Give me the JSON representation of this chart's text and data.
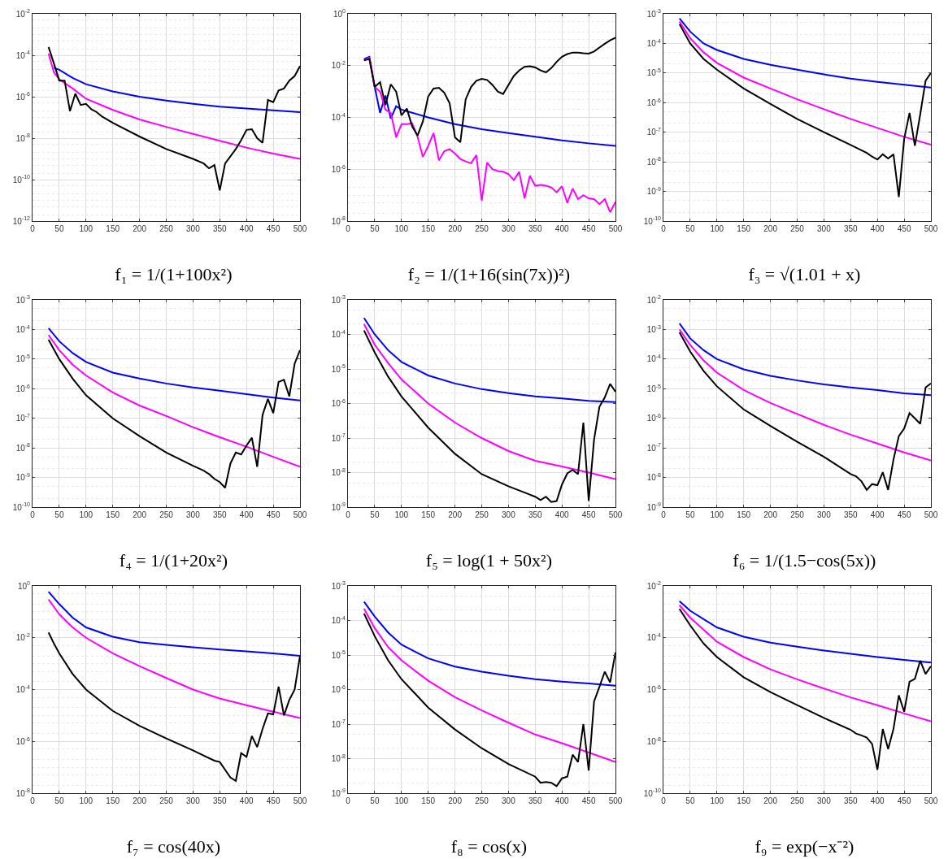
{
  "chart_data": [
    {
      "type": "line",
      "title": "f₁ = 1/(1+100x²)",
      "log": true,
      "grid": true,
      "xlim": [
        0,
        500
      ],
      "xticks": [
        0,
        50,
        100,
        150,
        200,
        250,
        300,
        350,
        400,
        450,
        500
      ],
      "ylim": [
        1e-12,
        0.01
      ],
      "yticks": [
        {
          "value": 1e-12,
          "label": "10$^{-12}$"
        },
        {
          "value": 1e-10,
          "label": "10$^{-10}$"
        },
        {
          "value": 1e-08,
          "label": "10$^{-8}$"
        },
        {
          "value": 1e-06,
          "label": "10$^{-6}$"
        },
        {
          "value": 0.0001,
          "label": "10$^{-4}$"
        },
        {
          "value": 0.01,
          "label": "10$^{-2}$"
        }
      ],
      "x": [
        30,
        40,
        50,
        75,
        100,
        150,
        200,
        250,
        300,
        350,
        400,
        450,
        500
      ],
      "series": [
        {
          "color": "#0000ff",
          "values": [
            null,
            2.5e-05,
            2e-05,
            8e-06,
            4e-06,
            1.8e-06,
            1e-06,
            6.5e-07,
            4.5e-07,
            3.3e-07,
            2.7e-07,
            2.2e-07,
            1.8e-07
          ]
        },
        {
          "color": "#ff00ff",
          "values": [
            0.00012,
            1.5e-05,
            7e-06,
            2.5e-06,
            8e-07,
            2.3e-07,
            8e-08,
            3.5e-08,
            1.6e-08,
            7.5e-09,
            3.5e-09,
            1.8e-09,
            1e-09
          ]
        },
        {
          "color": "#000000",
          "x": [
            30,
            40,
            50,
            60,
            70,
            80,
            90,
            100,
            110,
            120,
            130,
            150,
            200,
            250,
            300,
            320,
            330,
            340,
            350,
            360,
            380,
            390,
            400,
            410,
            420,
            430,
            440,
            450,
            460,
            470,
            480,
            490,
            500
          ],
          "values": [
            0.00025,
            4e-05,
            6e-06,
            6e-06,
            2e-07,
            1.4e-06,
            4e-07,
            4.5e-07,
            2.5e-07,
            1.8e-07,
            1.1e-07,
            5.5e-08,
            1.2e-08,
            3e-09,
            1e-09,
            6e-10,
            3.5e-10,
            5e-10,
            3e-11,
            6e-10,
            3e-09,
            8e-09,
            2.5e-08,
            2.7e-08,
            1e-08,
            6e-09,
            7e-07,
            5.5e-07,
            2e-06,
            2.5e-06,
            6e-06,
            1e-05,
            3e-05
          ]
        }
      ]
    },
    {
      "type": "line",
      "title": "f₂ = 1/(1+16(sin(7x))²)",
      "log": true,
      "grid": true,
      "xlim": [
        0,
        500
      ],
      "xticks": [
        0,
        50,
        100,
        150,
        200,
        250,
        300,
        350,
        400,
        450,
        500
      ],
      "ylim": [
        1e-08,
        1
      ],
      "yticks": [
        {
          "value": 1e-08,
          "label": "10$^{-8}$"
        },
        {
          "value": 1e-06,
          "label": "10$^{-6}$"
        },
        {
          "value": 0.0001,
          "label": "10$^{-4}$"
        },
        {
          "value": 0.01,
          "label": "10$^{-2}$"
        },
        {
          "value": 1,
          "label": "10$^{0}$"
        }
      ],
      "x": [
        30,
        40,
        50,
        60,
        70,
        80,
        90,
        100,
        150,
        200,
        250,
        300,
        350,
        400,
        450,
        500
      ],
      "series": [
        {
          "color": "#0000ff",
          "values": [
            0.018,
            0.022,
            0.0015,
            0.00015,
            0.0007,
            9e-05,
            0.00027,
            0.0002,
            0.0001,
            5.5e-05,
            3.5e-05,
            2.5e-05,
            1.8e-05,
            1.3e-05,
            1e-05,
            8e-06
          ]
        },
        {
          "color": "#ff00ff",
          "x": [
            30,
            40,
            50,
            60,
            70,
            80,
            90,
            100,
            110,
            120,
            130,
            140,
            150,
            160,
            170,
            180,
            190,
            200,
            210,
            220,
            230,
            240,
            250,
            260,
            270,
            280,
            290,
            300,
            310,
            320,
            330,
            340,
            350,
            360,
            370,
            380,
            390,
            400,
            410,
            420,
            430,
            440,
            450,
            460,
            470,
            480,
            490,
            500
          ],
          "values": [
            0.016,
            0.02,
            0.0015,
            0.001,
            0.0002,
            0.00015,
            1.7e-05,
            5.5e-05,
            5.5e-05,
            6e-05,
            1.8e-05,
            3e-06,
            8e-06,
            2.5e-05,
            2.2e-06,
            5e-06,
            6e-06,
            4e-06,
            2.5e-06,
            2e-06,
            1.7e-06,
            3.5e-06,
            6e-08,
            1.8e-06,
            1e-06,
            8.5e-07,
            8e-07,
            6.5e-07,
            3.8e-07,
            8e-07,
            7.5e-08,
            5.5e-07,
            2.3e-07,
            2.5e-07,
            2.3e-07,
            2e-07,
            1.3e-07,
            2.2e-07,
            5e-08,
            1.8e-07,
            7e-08,
            1e-07,
            7.5e-08,
            7e-08,
            4.5e-08,
            7e-08,
            2.2e-08,
            5.5e-08
          ]
        },
        {
          "color": "#000000",
          "x": [
            30,
            40,
            50,
            60,
            70,
            80,
            90,
            100,
            110,
            120,
            130,
            140,
            150,
            160,
            170,
            180,
            190,
            200,
            210,
            220,
            230,
            240,
            250,
            260,
            270,
            280,
            290,
            300,
            310,
            320,
            330,
            340,
            350,
            360,
            370,
            380,
            390,
            400,
            410,
            420,
            430,
            440,
            450,
            460,
            470,
            480,
            490,
            500
          ],
          "values": [
            0.016,
            0.018,
            0.0015,
            0.0023,
            0.0003,
            0.0019,
            0.001,
            0.00012,
            0.00022,
            4.5e-05,
            2e-05,
            7e-05,
            0.00065,
            0.0013,
            0.0014,
            0.0009,
            0.00035,
            1.7e-05,
            1.1e-05,
            0.0005,
            0.0015,
            0.0026,
            0.0031,
            0.0028,
            0.0018,
            0.001,
            0.0008,
            0.0018,
            0.004,
            0.0065,
            0.009,
            0.0095,
            0.0085,
            0.0065,
            0.0055,
            0.008,
            0.014,
            0.022,
            0.028,
            0.032,
            0.032,
            0.03,
            0.029,
            0.035,
            0.05,
            0.07,
            0.095,
            0.12
          ]
        }
      ]
    },
    {
      "type": "line",
      "title": "f₃ = √(1.01 + x)",
      "log": true,
      "grid": true,
      "xlim": [
        0,
        500
      ],
      "xticks": [
        0,
        50,
        100,
        150,
        200,
        250,
        300,
        350,
        400,
        450,
        500
      ],
      "ylim": [
        1e-10,
        0.001
      ],
      "yticks": [
        {
          "value": 1e-10,
          "label": "10$^{-10}$"
        },
        {
          "value": 1e-09,
          "label": "10$^{-9}$"
        },
        {
          "value": 1e-08,
          "label": "10$^{-8}$"
        },
        {
          "value": 1e-07,
          "label": "10$^{-7}$"
        },
        {
          "value": 1e-06,
          "label": "10$^{-6}$"
        },
        {
          "value": 1e-05,
          "label": "10$^{-5}$"
        },
        {
          "value": 0.0001,
          "label": "10$^{-4}$"
        },
        {
          "value": 0.001,
          "label": "10$^{-3}$"
        }
      ],
      "x": [
        30,
        50,
        75,
        100,
        150,
        200,
        250,
        300,
        350,
        400,
        450,
        500
      ],
      "series": [
        {
          "color": "#0000ff",
          "values": [
            0.0007,
            0.00025,
            0.0001,
            6e-05,
            3e-05,
            1.9e-05,
            1.3e-05,
            9e-06,
            6.5e-06,
            5e-06,
            4e-06,
            3.2e-06
          ]
        },
        {
          "color": "#ff00ff",
          "values": [
            0.00055,
            0.00015,
            5e-05,
            2.2e-05,
            7e-06,
            3e-06,
            1.3e-06,
            6e-07,
            2.8e-07,
            1.4e-07,
            7e-08,
            3.8e-08
          ]
        },
        {
          "color": "#000000",
          "x": [
            30,
            50,
            75,
            100,
            150,
            200,
            250,
            300,
            350,
            380,
            390,
            400,
            410,
            420,
            430,
            440,
            450,
            460,
            470,
            480,
            490,
            500
          ],
          "values": [
            0.00045,
            0.0001,
            3e-05,
            1.3e-05,
            3e-06,
            9e-07,
            2.8e-07,
            1e-07,
            3.7e-08,
            2e-08,
            1.5e-08,
            1.2e-08,
            1.8e-08,
            1.3e-08,
            1.8e-08,
            6.5e-10,
            6e-08,
            4.5e-07,
            3.5e-08,
            4e-07,
            5.5e-06,
            1e-05
          ]
        }
      ]
    },
    {
      "type": "line",
      "title": "f₄ = 1/(1+20x²)",
      "log": true,
      "grid": true,
      "xlim": [
        0,
        500
      ],
      "xticks": [
        0,
        50,
        100,
        150,
        200,
        250,
        300,
        350,
        400,
        450,
        500
      ],
      "ylim": [
        1e-10,
        0.001
      ],
      "yticks": [
        {
          "value": 1e-10,
          "label": "10$^{-10}$"
        },
        {
          "value": 1e-09,
          "label": "10$^{-9}$"
        },
        {
          "value": 1e-08,
          "label": "10$^{-8}$"
        },
        {
          "value": 1e-07,
          "label": "10$^{-7}$"
        },
        {
          "value": 1e-06,
          "label": "10$^{-6}$"
        },
        {
          "value": 1e-05,
          "label": "10$^{-5}$"
        },
        {
          "value": 0.0001,
          "label": "10$^{-4}$"
        },
        {
          "value": 0.001,
          "label": "10$^{-3}$"
        }
      ],
      "x": [
        30,
        50,
        75,
        100,
        150,
        200,
        250,
        300,
        350,
        400,
        450,
        500
      ],
      "series": [
        {
          "color": "#0000ff",
          "values": [
            0.00011,
            4e-05,
            1.6e-05,
            8e-06,
            3.5e-06,
            2.2e-06,
            1.5e-06,
            1.1e-06,
            8.5e-07,
            6.5e-07,
            5e-07,
            4e-07
          ]
        },
        {
          "color": "#ff00ff",
          "values": [
            6.5e-05,
            2e-05,
            6.5e-06,
            2.8e-06,
            7.5e-07,
            2.7e-07,
            1.2e-07,
            5e-08,
            2.3e-08,
            1.1e-08,
            5e-09,
            2.3e-09
          ]
        },
        {
          "color": "#000000",
          "x": [
            30,
            50,
            75,
            100,
            150,
            200,
            250,
            300,
            320,
            330,
            340,
            350,
            360,
            370,
            380,
            390,
            400,
            410,
            420,
            430,
            440,
            450,
            460,
            470,
            480,
            490,
            500
          ],
          "values": [
            4.5e-05,
            1e-05,
            2.2e-06,
            6e-07,
            1e-07,
            2.5e-08,
            7e-09,
            2.5e-09,
            1.7e-09,
            1.3e-09,
            9e-10,
            7e-10,
            4.5e-10,
            3e-09,
            7e-09,
            6e-09,
            1.2e-08,
            2.2e-08,
            2.3e-09,
            1.3e-07,
            4.5e-07,
            1.5e-07,
            1.7e-06,
            2e-06,
            5.5e-07,
            7e-06,
            2e-05
          ]
        }
      ]
    },
    {
      "type": "line",
      "title": "f₅ = log(1 + 50x²)",
      "log": true,
      "grid": true,
      "xlim": [
        0,
        500
      ],
      "xticks": [
        0,
        50,
        100,
        150,
        200,
        250,
        300,
        350,
        400,
        450,
        500
      ],
      "ylim": [
        1e-09,
        0.001
      ],
      "yticks": [
        {
          "value": 1e-09,
          "label": "10$^{-9}$"
        },
        {
          "value": 1e-08,
          "label": "10$^{-8}$"
        },
        {
          "value": 1e-07,
          "label": "10$^{-7}$"
        },
        {
          "value": 1e-06,
          "label": "10$^{-6}$"
        },
        {
          "value": 1e-05,
          "label": "10$^{-5}$"
        },
        {
          "value": 0.0001,
          "label": "10$^{-4}$"
        },
        {
          "value": 0.001,
          "label": "10$^{-3}$"
        }
      ],
      "x": [
        30,
        50,
        75,
        100,
        150,
        200,
        250,
        300,
        350,
        400,
        450,
        500
      ],
      "series": [
        {
          "color": "#0000ff",
          "values": [
            0.0003,
            0.0001,
            3.5e-05,
            1.6e-05,
            6.5e-06,
            3.8e-06,
            2.6e-06,
            2e-06,
            1.6e-06,
            1.4e-06,
            1.2e-06,
            1.1e-06
          ]
        },
        {
          "color": "#ff00ff",
          "values": [
            0.0002,
            5e-05,
            1.5e-05,
            5e-06,
            1e-06,
            2.8e-07,
            1e-07,
            4.2e-08,
            2.2e-08,
            1.5e-08,
            1e-08,
            6.5e-09
          ]
        },
        {
          "color": "#000000",
          "x": [
            30,
            50,
            75,
            100,
            150,
            200,
            250,
            300,
            340,
            350,
            360,
            370,
            380,
            390,
            400,
            410,
            420,
            430,
            440,
            450,
            460,
            470,
            480,
            490,
            500
          ],
          "values": [
            0.00013,
            3e-05,
            6e-06,
            1.6e-06,
            2e-07,
            3.5e-08,
            9e-09,
            4e-09,
            2.3e-09,
            2e-09,
            1.6e-09,
            2e-09,
            1.4e-09,
            1.5e-09,
            4.5e-09,
            9.5e-09,
            1.2e-08,
            9e-09,
            2.8e-07,
            1.5e-09,
            9e-08,
            8e-07,
            1.5e-06,
            3.7e-06,
            2.2e-06
          ]
        }
      ]
    },
    {
      "type": "line",
      "title": "f₆ = 1/(1.5−cos(5x))",
      "log": true,
      "grid": true,
      "xlim": [
        0,
        500
      ],
      "xticks": [
        0,
        50,
        100,
        150,
        200,
        250,
        300,
        350,
        400,
        450,
        500
      ],
      "ylim": [
        1e-09,
        0.01
      ],
      "yticks": [
        {
          "value": 1e-09,
          "label": "10$^{-9}$"
        },
        {
          "value": 1e-08,
          "label": "10$^{-8}$"
        },
        {
          "value": 1e-07,
          "label": "10$^{-7}$"
        },
        {
          "value": 1e-06,
          "label": "10$^{-6}$"
        },
        {
          "value": 1e-05,
          "label": "10$^{-5}$"
        },
        {
          "value": 0.0001,
          "label": "10$^{-4}$"
        },
        {
          "value": 0.001,
          "label": "10$^{-3}$"
        },
        {
          "value": 0.01,
          "label": "10$^{-2}$"
        }
      ],
      "x": [
        30,
        50,
        75,
        100,
        150,
        200,
        250,
        300,
        350,
        400,
        450,
        500
      ],
      "series": [
        {
          "color": "#0000ff",
          "values": [
            0.0016,
            0.0005,
            0.0002,
            0.0001,
            4.5e-05,
            2.7e-05,
            1.9e-05,
            1.4e-05,
            1.1e-05,
            9e-06,
            7e-06,
            6e-06
          ]
        },
        {
          "color": "#ff00ff",
          "values": [
            0.001,
            0.0003,
            9e-05,
            3.5e-05,
            9e-06,
            3.3e-06,
            1.4e-06,
            6e-07,
            2.8e-07,
            1.4e-07,
            7e-08,
            3.8e-08
          ]
        },
        {
          "color": "#000000",
          "x": [
            30,
            50,
            75,
            100,
            150,
            200,
            250,
            300,
            350,
            360,
            370,
            380,
            390,
            400,
            410,
            420,
            430,
            440,
            450,
            460,
            470,
            480,
            490,
            500
          ],
          "values": [
            0.0008,
            0.00018,
            4e-05,
            1.2e-05,
            2e-06,
            5.5e-07,
            1.6e-07,
            5e-08,
            1.3e-08,
            1.1e-08,
            7.5e-09,
            3.8e-09,
            6e-09,
            5.5e-09,
            1.5e-08,
            3.8e-09,
            4e-08,
            2.5e-07,
            4.5e-07,
            1.5e-06,
            1e-06,
            6.5e-07,
            1.1e-05,
            1.5e-05
          ]
        }
      ]
    },
    {
      "type": "line",
      "title": "f₇ = cos(40x)",
      "log": true,
      "grid": true,
      "xlim": [
        0,
        500
      ],
      "xticks": [
        0,
        50,
        100,
        150,
        200,
        250,
        300,
        350,
        400,
        450,
        500
      ],
      "ylim": [
        1e-08,
        1
      ],
      "yticks": [
        {
          "value": 1e-08,
          "label": "10$^{-8}$"
        },
        {
          "value": 1e-06,
          "label": "10$^{-6}$"
        },
        {
          "value": 0.0001,
          "label": "10$^{-4}$"
        },
        {
          "value": 0.01,
          "label": "10$^{-2}$"
        },
        {
          "value": 1,
          "label": "10$^{0}$"
        }
      ],
      "x": [
        30,
        50,
        75,
        100,
        150,
        200,
        250,
        300,
        350,
        400,
        450,
        500
      ],
      "series": [
        {
          "color": "#0000ff",
          "values": [
            0.6,
            0.2,
            0.06,
            0.025,
            0.011,
            0.0067,
            0.0053,
            0.0043,
            0.0035,
            0.003,
            0.0025,
            0.002
          ]
        },
        {
          "color": "#ff00ff",
          "values": [
            0.3,
            0.08,
            0.025,
            0.01,
            0.0025,
            0.0008,
            0.00028,
            0.0001,
            4.5e-05,
            2.5e-05,
            1.4e-05,
            8e-06
          ]
        },
        {
          "color": "#000000",
          "x": [
            30,
            40,
            50,
            75,
            100,
            150,
            200,
            250,
            300,
            340,
            350,
            360,
            370,
            380,
            390,
            400,
            410,
            420,
            430,
            440,
            450,
            460,
            470,
            480,
            490,
            500
          ],
          "values": [
            0.016,
            0.006,
            0.0025,
            0.0004,
            0.0001,
            1.5e-05,
            4e-06,
            1.3e-06,
            4.5e-07,
            1.8e-07,
            1.6e-07,
            8e-08,
            4e-08,
            3e-08,
            3.5e-07,
            2.5e-07,
            1.6e-06,
            6e-07,
            3e-06,
            1.2e-05,
            1.1e-05,
            0.00013,
            1e-05,
            4e-05,
            0.0001,
            0.002
          ]
        }
      ]
    },
    {
      "type": "line",
      "title": "f₈ = cos(x)",
      "log": true,
      "grid": true,
      "xlim": [
        0,
        500
      ],
      "xticks": [
        0,
        50,
        100,
        150,
        200,
        250,
        300,
        350,
        400,
        450,
        500
      ],
      "ylim": [
        1e-09,
        0.001
      ],
      "yticks": [
        {
          "value": 1e-09,
          "label": "10$^{-9}$"
        },
        {
          "value": 1e-08,
          "label": "10$^{-8}$"
        },
        {
          "value": 1e-07,
          "label": "10$^{-7}$"
        },
        {
          "value": 1e-06,
          "label": "10$^{-6}$"
        },
        {
          "value": 1e-05,
          "label": "10$^{-5}$"
        },
        {
          "value": 0.0001,
          "label": "10$^{-4}$"
        },
        {
          "value": 0.001,
          "label": "10$^{-3}$"
        }
      ],
      "x": [
        30,
        50,
        75,
        100,
        150,
        200,
        250,
        300,
        350,
        400,
        450,
        500
      ],
      "series": [
        {
          "color": "#0000ff",
          "values": [
            0.00035,
            0.00013,
            4.5e-05,
            2e-05,
            8e-06,
            4.6e-06,
            3.3e-06,
            2.5e-06,
            2e-06,
            1.7e-06,
            1.5e-06,
            1.3e-06
          ]
        },
        {
          "color": "#ff00ff",
          "values": [
            0.00022,
            6e-05,
            1.7e-05,
            7e-06,
            1.8e-06,
            6e-07,
            2.5e-07,
            1.1e-07,
            5e-08,
            2.8e-08,
            1.5e-08,
            8e-09
          ]
        },
        {
          "color": "#000000",
          "x": [
            30,
            50,
            75,
            100,
            150,
            200,
            250,
            300,
            350,
            360,
            370,
            380,
            390,
            400,
            410,
            420,
            430,
            440,
            450,
            460,
            470,
            480,
            490,
            500
          ],
          "values": [
            0.00016,
            3.5e-05,
            7e-06,
            2e-06,
            3e-07,
            7e-08,
            2e-08,
            7e-09,
            3e-09,
            2e-09,
            2.1e-09,
            2e-09,
            1.6e-09,
            2.7e-09,
            3e-09,
            1.3e-08,
            8e-09,
            1e-07,
            4.5e-09,
            4.5e-07,
            1.2e-06,
            3.3e-06,
            1.6e-06,
            1.2e-05
          ]
        }
      ]
    },
    {
      "type": "line",
      "title": "f₉ = exp(−x⁻²)",
      "log": true,
      "grid": true,
      "xlim": [
        0,
        500
      ],
      "xticks": [
        0,
        50,
        100,
        150,
        200,
        250,
        300,
        350,
        400,
        450,
        500
      ],
      "ylim": [
        1e-10,
        0.01
      ],
      "yticks": [
        {
          "value": 1e-10,
          "label": "10$^{-10}$"
        },
        {
          "value": 1e-08,
          "label": "10$^{-8}$"
        },
        {
          "value": 1e-06,
          "label": "10$^{-6}$"
        },
        {
          "value": 0.0001,
          "label": "10$^{-4}$"
        },
        {
          "value": 0.01,
          "label": "10$^{-2}$"
        }
      ],
      "x": [
        30,
        50,
        100,
        150,
        200,
        250,
        300,
        350,
        400,
        450,
        500
      ],
      "series": [
        {
          "color": "#0000ff",
          "values": [
            0.0026,
            0.0011,
            0.00025,
            0.00011,
            6.5e-05,
            4.5e-05,
            3.2e-05,
            2.4e-05,
            1.8e-05,
            1.4e-05,
            1.1e-05
          ]
        },
        {
          "color": "#ff00ff",
          "values": [
            0.0018,
            0.0006,
            7e-05,
            1.8e-05,
            6e-06,
            2.5e-06,
            1.1e-06,
            5e-07,
            2.5e-07,
            1.2e-07,
            6e-08
          ]
        },
        {
          "color": "#000000",
          "x": [
            30,
            50,
            75,
            100,
            150,
            200,
            250,
            300,
            350,
            360,
            370,
            380,
            390,
            400,
            410,
            420,
            430,
            440,
            450,
            460,
            470,
            480,
            490,
            500
          ],
          "values": [
            0.0013,
            0.0003,
            6e-05,
            1.8e-05,
            3e-06,
            8e-07,
            2.5e-07,
            8e-08,
            2.8e-08,
            2e-08,
            1.7e-08,
            1.4e-08,
            8e-09,
            8e-10,
            3e-08,
            5e-09,
            3e-08,
            6e-07,
            1.4e-07,
            2e-06,
            2.6e-06,
            1.3e-05,
            4e-06,
            8e-06
          ]
        }
      ]
    }
  ]
}
